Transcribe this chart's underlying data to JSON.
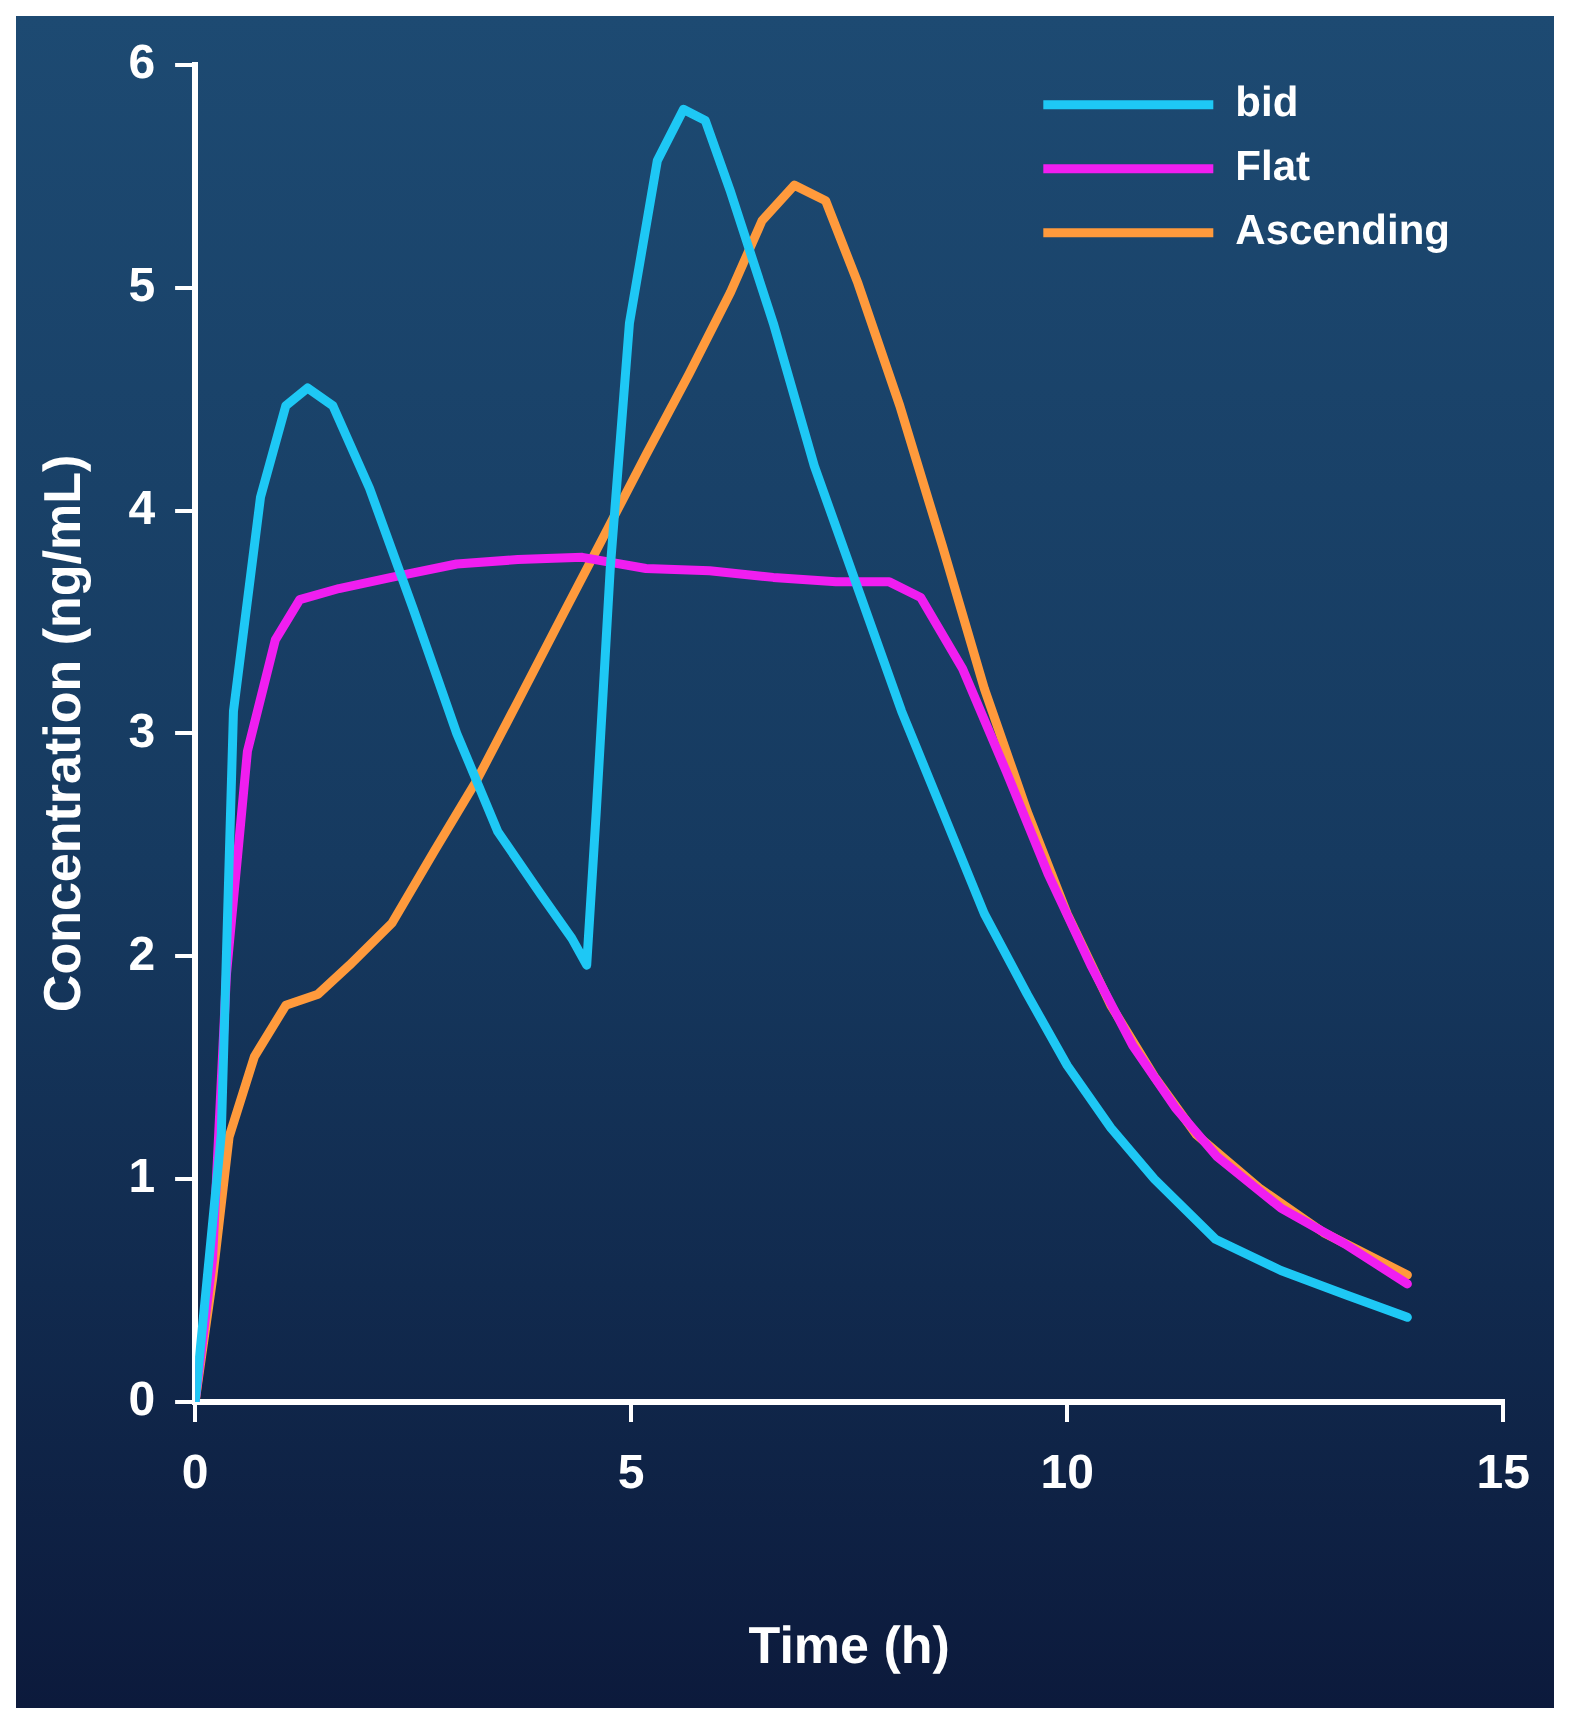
{
  "chart_data": {
    "type": "line",
    "xlabel": "Time (h)",
    "ylabel": "Concentration (ng/mL)",
    "xlim": [
      0,
      15
    ],
    "xticks": [
      0,
      5,
      10,
      15
    ],
    "ylim": [
      0,
      6
    ],
    "yticks": [
      0,
      1,
      2,
      3,
      4,
      5,
      6
    ],
    "grid": false,
    "legend": "top right",
    "marker": "none",
    "line_style": "solid",
    "series": [
      {
        "name": "bid",
        "color": "#1ec8f5",
        "x": [
          0,
          0.3,
          0.44,
          0.75,
          1.04,
          1.29,
          1.58,
          2.0,
          2.5,
          3.0,
          3.47,
          3.96,
          4.32,
          4.49,
          4.6,
          4.76,
          4.98,
          5.3,
          5.6,
          5.85,
          6.14,
          6.63,
          7.1,
          7.6,
          8.1,
          8.57,
          9.05,
          9.54,
          10.0,
          10.5,
          11.0,
          11.7,
          12.45,
          13.2,
          13.9
        ],
        "values": [
          0,
          1.2,
          3.1,
          4.06,
          4.47,
          4.55,
          4.47,
          4.1,
          3.56,
          3.0,
          2.56,
          2.28,
          2.08,
          1.96,
          2.65,
          3.74,
          4.84,
          5.57,
          5.8,
          5.75,
          5.43,
          4.84,
          4.2,
          3.65,
          3.1,
          2.65,
          2.19,
          1.83,
          1.51,
          1.23,
          1.0,
          0.73,
          0.59,
          0.48,
          0.38
        ]
      },
      {
        "name": "Flat",
        "color": "#f01ef0",
        "x": [
          0,
          0.2,
          0.36,
          0.6,
          0.92,
          1.2,
          1.65,
          2.25,
          3.0,
          3.7,
          4.44,
          5.17,
          5.9,
          6.63,
          7.35,
          7.96,
          8.32,
          8.8,
          9.3,
          9.78,
          10.27,
          10.75,
          11.24,
          11.72,
          12.45,
          13.18,
          13.9
        ],
        "values": [
          0,
          0.64,
          1.92,
          2.92,
          3.42,
          3.6,
          3.65,
          3.7,
          3.76,
          3.78,
          3.79,
          3.74,
          3.73,
          3.7,
          3.68,
          3.68,
          3.61,
          3.29,
          2.83,
          2.37,
          1.96,
          1.6,
          1.32,
          1.1,
          0.87,
          0.71,
          0.53
        ]
      },
      {
        "name": "Ascending",
        "color": "#ff9a3c",
        "x": [
          0,
          0.2,
          0.39,
          0.68,
          1.04,
          1.41,
          1.77,
          2.26,
          2.74,
          3.23,
          3.71,
          4.2,
          4.68,
          5.17,
          5.66,
          6.14,
          6.5,
          6.87,
          7.23,
          7.6,
          8.08,
          8.57,
          9.05,
          9.54,
          10.0,
          10.5,
          11.0,
          11.48,
          12.2,
          12.94,
          13.9
        ],
        "values": [
          0,
          0.55,
          1.19,
          1.55,
          1.78,
          1.83,
          1.96,
          2.15,
          2.47,
          2.79,
          3.15,
          3.52,
          3.88,
          4.25,
          4.61,
          4.98,
          5.3,
          5.46,
          5.39,
          5.02,
          4.47,
          3.84,
          3.2,
          2.65,
          2.19,
          1.78,
          1.46,
          1.2,
          0.96,
          0.76,
          0.57
        ]
      }
    ]
  }
}
